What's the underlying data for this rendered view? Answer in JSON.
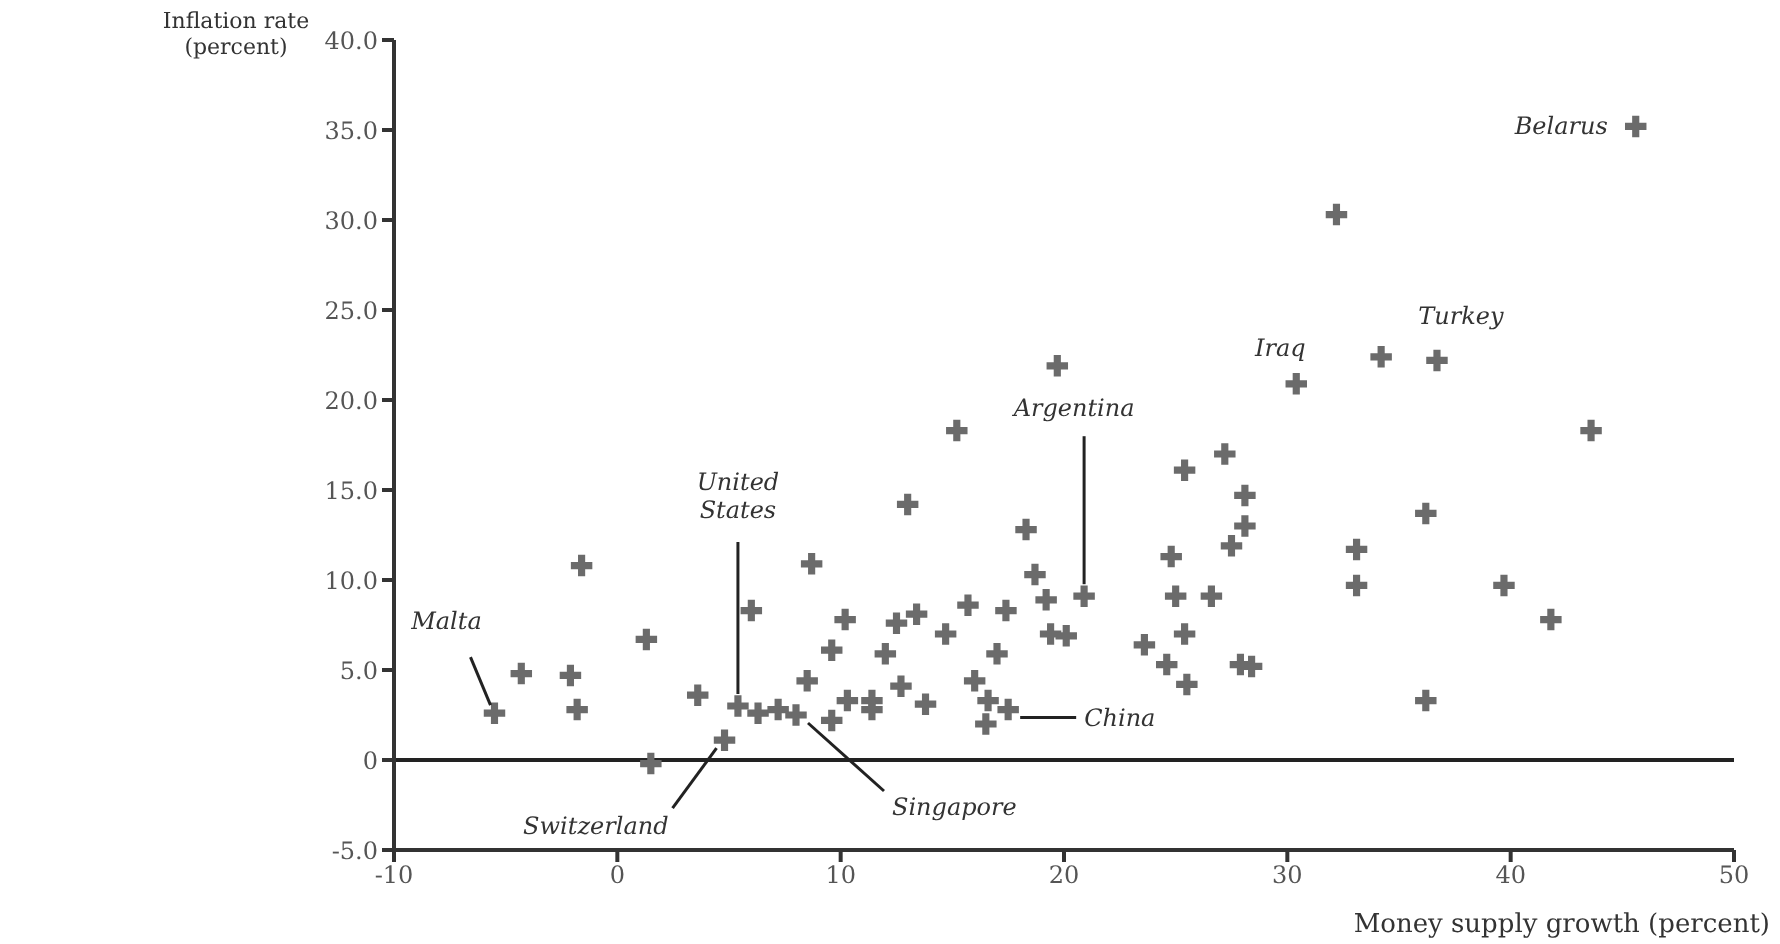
{
  "chart_data": {
    "type": "scatter",
    "xlabel": "Money supply growth (percent)",
    "ylabel": "Inflation rate\n(percent)",
    "xlim": [
      -10,
      50
    ],
    "xticks": [
      -10,
      0,
      10,
      20,
      30,
      40,
      50
    ],
    "ylim": [
      -5,
      40
    ],
    "yticks": [
      {
        "value": -5,
        "label": "-5.0"
      },
      {
        "value": 0,
        "label": "0"
      },
      {
        "value": 5,
        "label": "5.0"
      },
      {
        "value": 10,
        "label": "10.0"
      },
      {
        "value": 15,
        "label": "15.0"
      },
      {
        "value": 20,
        "label": "20.0"
      },
      {
        "value": 25,
        "label": "25.0"
      },
      {
        "value": 30,
        "label": "30.0"
      },
      {
        "value": 35,
        "label": "35.0"
      },
      {
        "value": 40,
        "label": "40.0"
      }
    ],
    "grid": false,
    "marker": "cross",
    "series": [
      {
        "color": "#6b6b6b",
        "x": [
          -5.5,
          -1.6,
          -4.3,
          -2.1,
          -1.8,
          1.3,
          1.5,
          3.6,
          6.0,
          8.7,
          10.2,
          9.6,
          10.3,
          8.5,
          5.4,
          6.3,
          7.2,
          8.0,
          4.8,
          15.2,
          13.0,
          19.7,
          18.3,
          18.7,
          20.9,
          19.2,
          19.4,
          20.1,
          25.4,
          27.2,
          28.1,
          28.1,
          27.5,
          24.8,
          25.0,
          26.6,
          25.4,
          23.6,
          24.6,
          25.5,
          27.9,
          15.7,
          17.4,
          13.4,
          12.5,
          14.7,
          12.0,
          17.0,
          16.0,
          11.4,
          13.8,
          16.5,
          16.6,
          17.5,
          9.6,
          11.4,
          12.7,
          45.6,
          32.2,
          30.4,
          34.2,
          36.7,
          43.6,
          36.2,
          33.1,
          33.1,
          39.7,
          41.8,
          36.2,
          28.4
        ],
        "values": [
          2.6,
          10.8,
          4.8,
          4.7,
          2.8,
          6.7,
          -0.2,
          3.6,
          8.3,
          10.9,
          7.8,
          6.1,
          3.3,
          4.4,
          3.0,
          2.6,
          2.8,
          2.5,
          1.1,
          18.3,
          14.2,
          21.9,
          12.8,
          10.3,
          9.1,
          8.9,
          7.0,
          6.9,
          16.1,
          17.0,
          14.7,
          13.0,
          11.9,
          11.3,
          9.1,
          9.1,
          7.0,
          6.4,
          5.3,
          4.2,
          5.3,
          8.6,
          8.3,
          8.1,
          7.6,
          7.0,
          5.9,
          5.9,
          4.4,
          3.3,
          3.1,
          2.0,
          3.3,
          2.8,
          2.2,
          2.8,
          4.1,
          35.2,
          30.3,
          20.9,
          22.4,
          22.2,
          18.3,
          13.7,
          11.7,
          9.7,
          9.7,
          7.8,
          3.3,
          5.2
        ]
      }
    ],
    "ref_lines": [
      {
        "axis": "y",
        "value": 0,
        "color": "#222222"
      }
    ],
    "annotations": [
      {
        "text": "Malta",
        "x": -5.5,
        "y": 2.6
      },
      {
        "text": "United\nStates",
        "x": 5.4,
        "y": 3.0
      },
      {
        "text": "Argentina",
        "x": 20.9,
        "y": 9.1
      },
      {
        "text": "China",
        "x": 17.5,
        "y": 2.8
      },
      {
        "text": "Singapore",
        "x": 8.0,
        "y": 2.5
      },
      {
        "text": "Switzerland",
        "x": 4.8,
        "y": 1.1
      },
      {
        "text": "Iraq",
        "x": 30.4,
        "y": 20.9
      },
      {
        "text": "Turkey",
        "x": 36.7,
        "y": 22.2
      },
      {
        "text": "Belarus",
        "x": 45.6,
        "y": 35.2
      }
    ]
  }
}
